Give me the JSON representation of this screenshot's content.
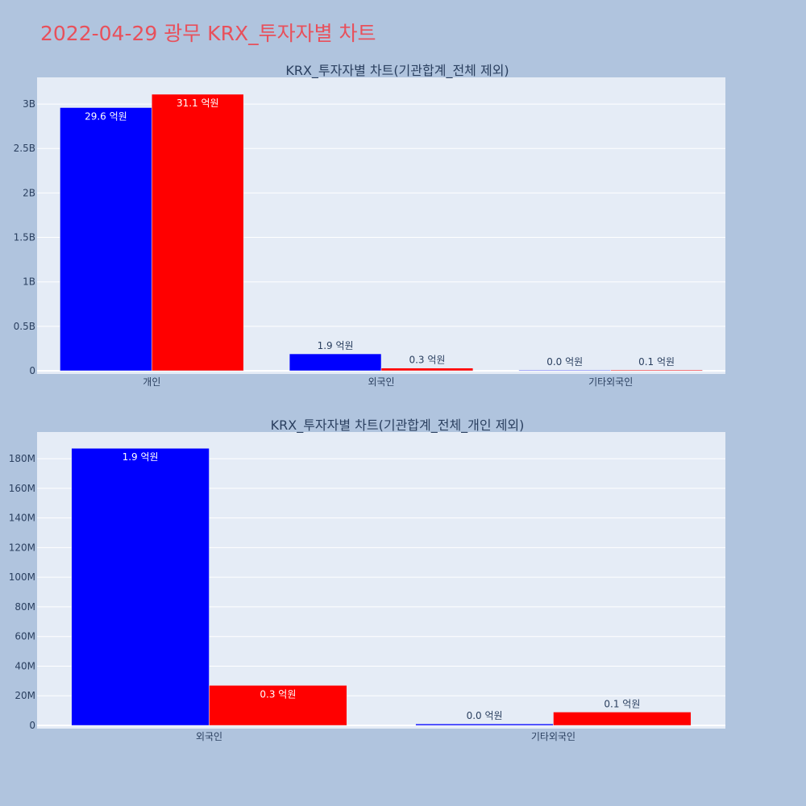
{
  "title": "2022-04-29 광무 KRX_투자자별 차트",
  "chart_data": [
    {
      "type": "bar",
      "title": "KRX_투자자별 차트(기관합계_전체 제외)",
      "categories": [
        "개인",
        "외국인",
        "기타외국인"
      ],
      "ylim": [
        0,
        3300000000
      ],
      "yticks": [
        {
          "value": 0,
          "label": "0"
        },
        {
          "value": 500000000,
          "label": "0.5B"
        },
        {
          "value": 1000000000,
          "label": "1B"
        },
        {
          "value": 1500000000,
          "label": "1.5B"
        },
        {
          "value": 2000000000,
          "label": "2B"
        },
        {
          "value": 2500000000,
          "label": "2.5B"
        },
        {
          "value": 3000000000,
          "label": "3B"
        }
      ],
      "grid": true,
      "series": [
        {
          "color": "#0000ff",
          "values": [
            2960000000,
            190000000,
            2000000
          ],
          "labels": [
            "29.6 억원",
            "1.9 억원",
            "0.0 억원"
          ]
        },
        {
          "color": "#ff0000",
          "values": [
            3110000000,
            30000000,
            9000000
          ],
          "labels": [
            "31.1 억원",
            "0.3 억원",
            "0.1 억원"
          ]
        }
      ]
    },
    {
      "type": "bar",
      "title": "KRX_투자자별 차트(기관합계_전체_개인 제외)",
      "categories": [
        "외국인",
        "기타외국인"
      ],
      "ylim": [
        0,
        198000000
      ],
      "yticks": [
        {
          "value": 0,
          "label": "0"
        },
        {
          "value": 20000000,
          "label": "20M"
        },
        {
          "value": 40000000,
          "label": "40M"
        },
        {
          "value": 60000000,
          "label": "60M"
        },
        {
          "value": 80000000,
          "label": "80M"
        },
        {
          "value": 100000000,
          "label": "100M"
        },
        {
          "value": 120000000,
          "label": "120M"
        },
        {
          "value": 140000000,
          "label": "140M"
        },
        {
          "value": 160000000,
          "label": "160M"
        },
        {
          "value": 180000000,
          "label": "180M"
        }
      ],
      "grid": true,
      "series": [
        {
          "color": "#0000ff",
          "values": [
            187000000,
            1000000
          ],
          "labels": [
            "1.9 억원",
            "0.0 억원"
          ]
        },
        {
          "color": "#ff0000",
          "values": [
            27000000,
            9000000
          ],
          "labels": [
            "0.3 억원",
            "0.1 억원"
          ]
        }
      ]
    }
  ]
}
